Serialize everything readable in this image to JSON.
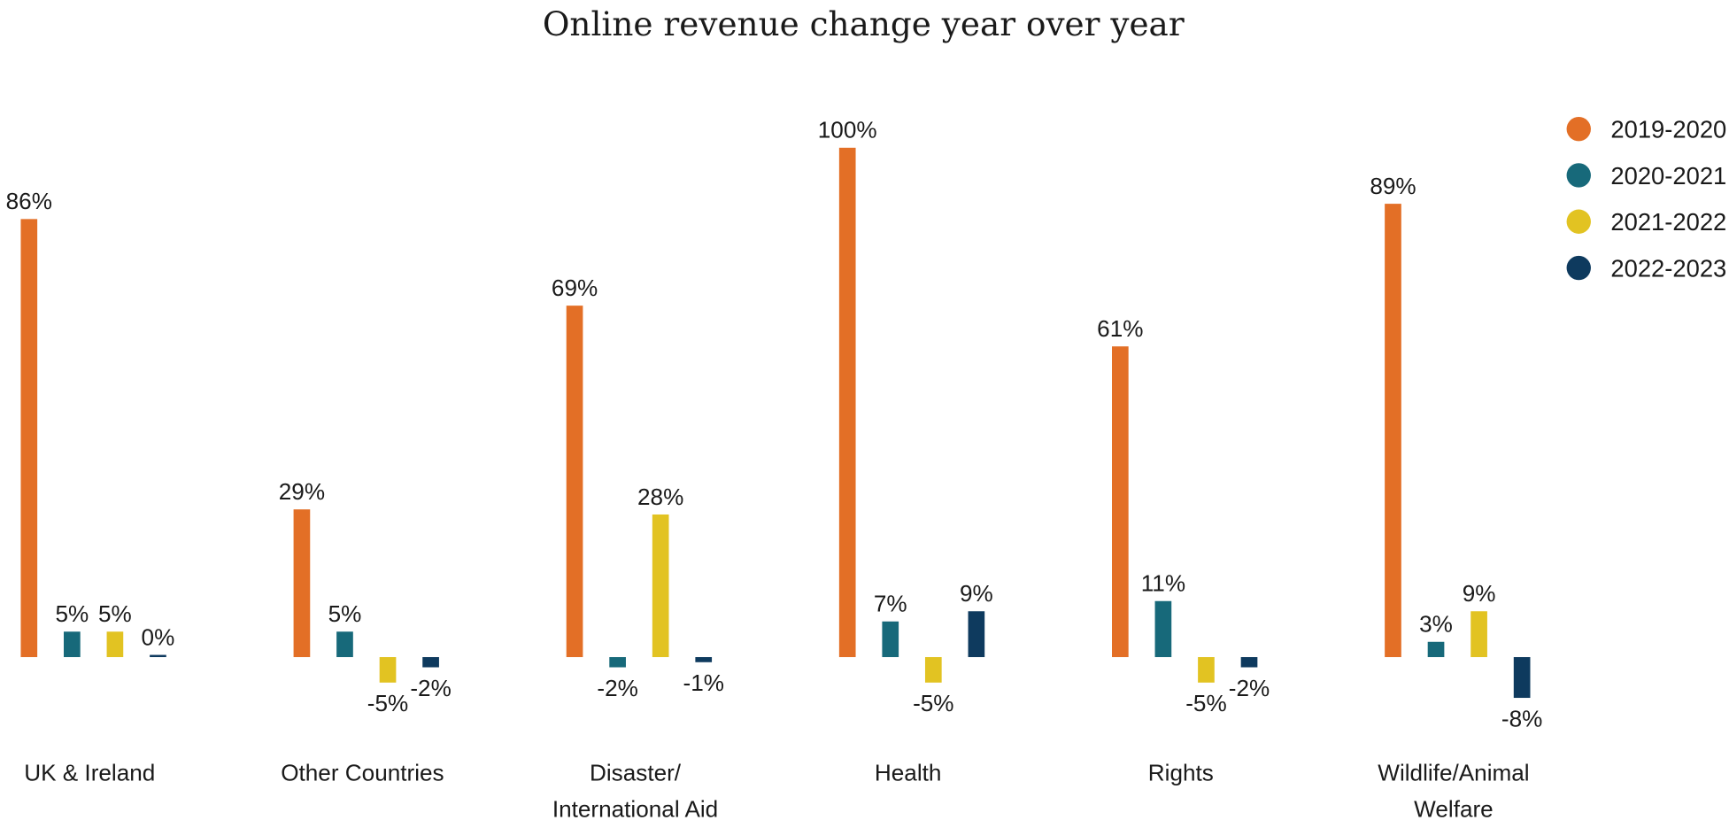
{
  "chart_data": {
    "type": "bar",
    "title": "Online revenue change year over year",
    "xlabel": "",
    "ylabel": "",
    "ylim": [
      -10,
      100
    ],
    "grid": false,
    "legend_position": "top-right",
    "value_suffix": "%",
    "categories": [
      [
        "UK & Ireland"
      ],
      [
        "Other Countries"
      ],
      [
        "Disaster/",
        "International Aid"
      ],
      [
        "Health"
      ],
      [
        "Rights"
      ],
      [
        "Wildlife/Animal",
        "Welfare"
      ]
    ],
    "series": [
      {
        "name": "2019-2020",
        "color": "#E36F26",
        "values": [
          86,
          29,
          69,
          100,
          61,
          89
        ]
      },
      {
        "name": "2020-2021",
        "color": "#17697A",
        "values": [
          5,
          5,
          -2,
          7,
          11,
          3
        ]
      },
      {
        "name": "2021-2022",
        "color": "#E2C322",
        "values": [
          5,
          -5,
          28,
          -5,
          -5,
          9
        ]
      },
      {
        "name": "2022-2023",
        "color": "#0E3A5E",
        "values": [
          0,
          -2,
          -1,
          9,
          -2,
          -8
        ]
      }
    ]
  }
}
